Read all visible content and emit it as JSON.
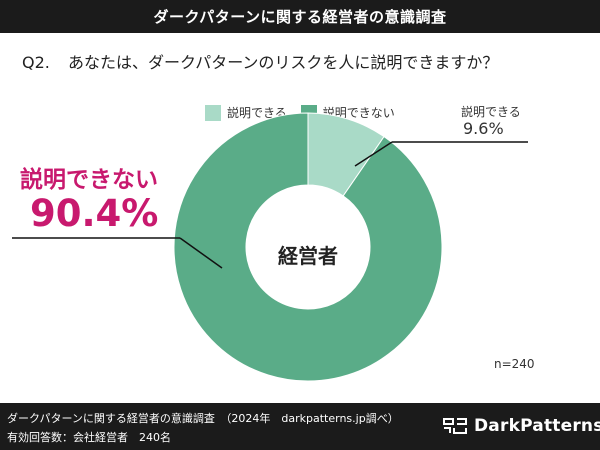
{
  "header": {
    "title": "ダークパターンに関する経営者の意識調査"
  },
  "question": {
    "number": "Q2.",
    "text": "あなたは、ダークパターンのリスクを人に説明できますか？"
  },
  "legend": [
    {
      "label": "説明できる",
      "color": "#a9dac7"
    },
    {
      "label": "説明できない",
      "color": "#5aac88"
    }
  ],
  "chart_data": {
    "type": "pie",
    "style": "donut",
    "slices": [
      {
        "label": "説明できる",
        "value": 9.6,
        "display": "9.6%",
        "color": "#a9dac7"
      },
      {
        "label": "説明できない",
        "value": 90.4,
        "display": "90.4%",
        "color": "#5aac88"
      }
    ],
    "center_label": "経営者",
    "sample_size": "n=240"
  },
  "callouts": {
    "minority_label": "説明できる",
    "minority_value": "9.6%",
    "majority_label": "説明できない",
    "majority_value": "90.4%",
    "majority_color": "#c8196e"
  },
  "footer": {
    "source": "ダークパターンに関する経営者の意識調査　（2024年　darkpatterns.jp調べ）",
    "respondents": "有効回答数：会社経営者　240名",
    "brand": "DarkPatterns",
    "logo_icon": "darkpatterns-logo-icon"
  }
}
